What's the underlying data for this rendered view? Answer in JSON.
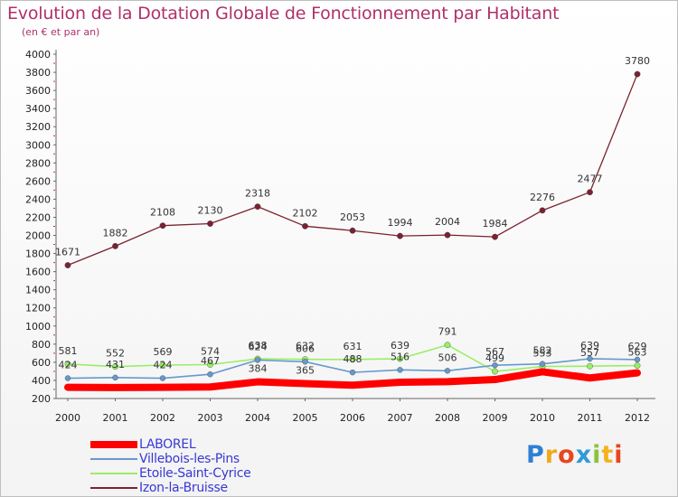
{
  "title": "Evolution de la Dotation Globale de Fonctionnement par Habitant",
  "subtitle": "(en € et par an)",
  "chart_data": {
    "type": "line",
    "x": [
      "2000",
      "2001",
      "2002",
      "2003",
      "2004",
      "2005",
      "2006",
      "2007",
      "2008",
      "2009",
      "2010",
      "2011",
      "2012"
    ],
    "ylim": [
      200,
      4000
    ],
    "yticks": [
      200,
      400,
      600,
      800,
      1000,
      1200,
      1400,
      1600,
      1800,
      2000,
      2200,
      2400,
      2600,
      2800,
      3000,
      3200,
      3400,
      3600,
      3800,
      4000
    ],
    "grid": false,
    "legend_position": "bottom-left",
    "series": [
      {
        "name": "LABOREL",
        "color": "#ff0000",
        "values": [
          324,
          321,
          324,
          327,
          384,
          365,
          347,
          380,
          386,
          409,
          495,
          427,
          483
        ],
        "labels": [
          "",
          "",
          "",
          "",
          "384",
          "365",
          "",
          "",
          "",
          "",
          "",
          "",
          ""
        ]
      },
      {
        "name": "Villebois-les-Pins",
        "color": "#6699cc",
        "values": [
          424,
          431,
          424,
          467,
          624,
          606,
          488,
          516,
          506,
          567,
          582,
          639,
          629
        ],
        "labels": [
          "424",
          "431",
          "424",
          "467",
          "624",
          "606",
          "488",
          "516",
          "506",
          "567",
          "582",
          "639",
          "629"
        ]
      },
      {
        "name": "Etoile-Saint-Cyrice",
        "color": "#99ee66",
        "values": [
          581,
          552,
          569,
          574,
          638,
          632,
          631,
          639,
          791,
          499,
          553,
          557,
          563
        ],
        "labels": [
          "581",
          "552",
          "569",
          "574",
          "638",
          "632",
          "631",
          "639",
          "791",
          "499",
          "553",
          "557",
          "563"
        ]
      },
      {
        "name": "Izon-la-Bruisse",
        "color": "#7a2230",
        "values": [
          1671,
          1882,
          2108,
          2130,
          2318,
          2102,
          2053,
          1994,
          2004,
          1984,
          2276,
          2477,
          3780
        ],
        "labels": [
          "1671",
          "1882",
          "2108",
          "2130",
          "2318",
          "2102",
          "2053",
          "1994",
          "2004",
          "1984",
          "2276",
          "2477",
          "3780"
        ]
      }
    ]
  },
  "logo": {
    "chars": [
      "P",
      "r",
      "o",
      "x",
      "i",
      "t",
      "i"
    ],
    "colors": [
      "#2f7fd4",
      "#f2a81d",
      "#e8461e",
      "#2f9ad8",
      "#8ac43f",
      "#f4b21f",
      "#e8461e"
    ]
  }
}
